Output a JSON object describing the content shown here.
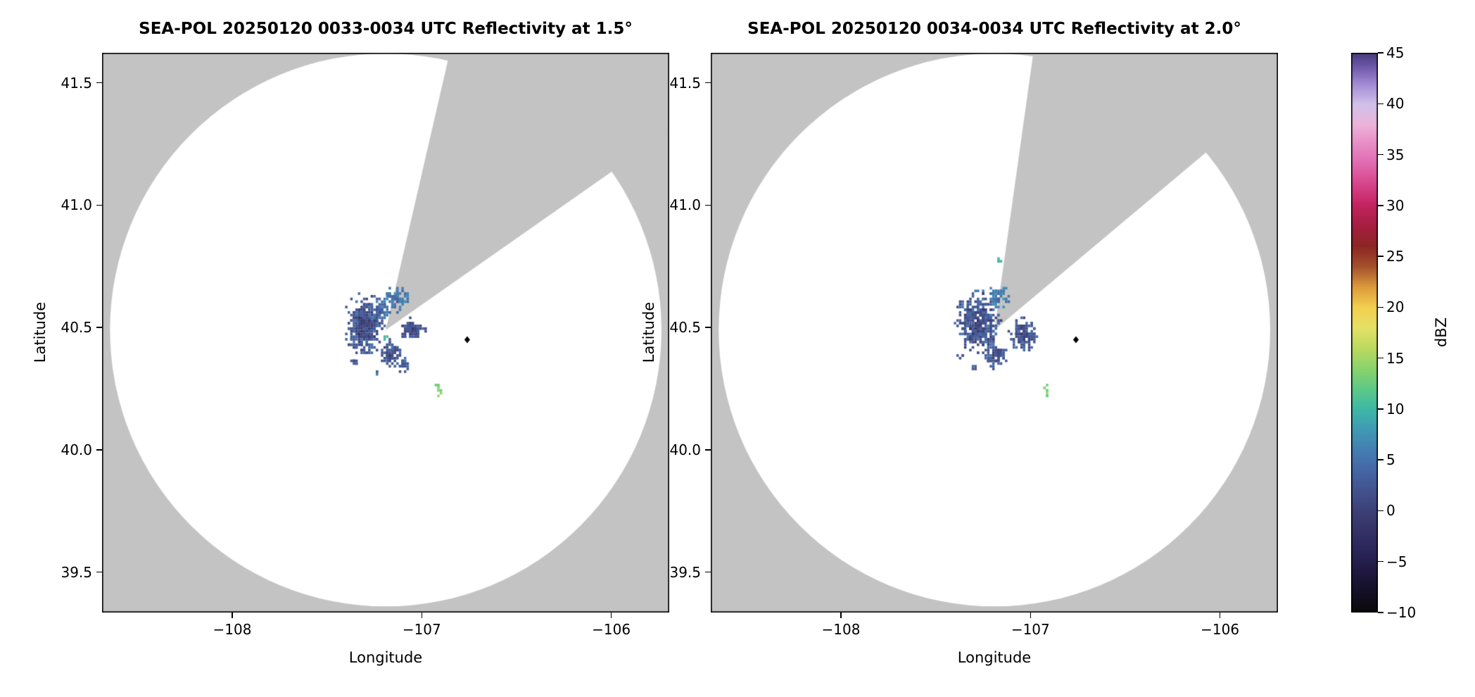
{
  "figure": {
    "background": "#ffffff",
    "outside_scan_color": "#c3c3c3",
    "scan_area_color": "#ffffff",
    "frame_color": "#000000",
    "text_color": "#000000"
  },
  "chart_data": [
    {
      "type": "heatmap",
      "title": "SEA-POL 20250120 0033-0034 UTC Reflectivity at 1.5°",
      "xlabel": "Longitude",
      "ylabel": "Latitude",
      "units": "dBZ",
      "xlim": [
        -108.687,
        -105.694
      ],
      "ylim": [
        39.335,
        41.623
      ],
      "grid": false,
      "xticks": [
        {
          "v": -108,
          "label": "−108"
        },
        {
          "v": -107,
          "label": "−107"
        },
        {
          "v": -106,
          "label": "−106"
        }
      ],
      "yticks": [
        {
          "v": 39.5,
          "label": "39.5"
        },
        {
          "v": 40.0,
          "label": "40.0"
        },
        {
          "v": 40.5,
          "label": "40.5"
        },
        {
          "v": 41.0,
          "label": "41.0"
        },
        {
          "v": 41.5,
          "label": "41.5"
        }
      ],
      "radar": {
        "lon": -107.19,
        "lat": 40.49,
        "range_deg_lon": 1.455,
        "range_deg_lat": 1.13
      },
      "missing_sector_azimuth_deg": [
        13,
        55
      ],
      "station_marker": {
        "lon": -106.76,
        "lat": 40.45,
        "shape": "diamond",
        "color": "#000000"
      },
      "echo_clusters": [
        {
          "lon": -107.3,
          "lat": 40.505,
          "rx": 0.085,
          "ry": 0.095,
          "gates": 320,
          "dbz": [
            -3,
            6
          ],
          "seed": 101
        },
        {
          "lon": -107.21,
          "lat": 40.575,
          "rx": 0.035,
          "ry": 0.035,
          "gates": 40,
          "dbz": [
            0,
            7
          ],
          "seed": 102
        },
        {
          "lon": -107.13,
          "lat": 40.615,
          "rx": 0.055,
          "ry": 0.04,
          "gates": 70,
          "dbz": [
            2,
            8
          ],
          "seed": 103
        },
        {
          "lon": -107.05,
          "lat": 40.49,
          "rx": 0.055,
          "ry": 0.035,
          "gates": 80,
          "dbz": [
            -2,
            4
          ],
          "seed": 104
        },
        {
          "lon": -107.16,
          "lat": 40.39,
          "rx": 0.05,
          "ry": 0.045,
          "gates": 75,
          "dbz": [
            -2,
            5
          ],
          "seed": 105
        },
        {
          "lon": -107.09,
          "lat": 40.345,
          "rx": 0.03,
          "ry": 0.028,
          "gates": 20,
          "dbz": [
            0,
            6
          ],
          "seed": 106
        },
        {
          "lon": -107.36,
          "lat": 40.36,
          "rx": 0.018,
          "ry": 0.018,
          "gates": 8,
          "dbz": [
            0,
            4
          ],
          "seed": 107
        },
        {
          "lon": -107.19,
          "lat": 40.455,
          "rx": 0.012,
          "ry": 0.01,
          "gates": 3,
          "dbz": [
            9,
            11
          ],
          "seed": 108
        },
        {
          "lon": -106.91,
          "lat": 40.25,
          "rx": 0.014,
          "ry": 0.026,
          "gates": 8,
          "dbz": [
            11,
            15
          ],
          "seed": 109
        },
        {
          "lon": -107.24,
          "lat": 40.315,
          "rx": 0.012,
          "ry": 0.01,
          "gates": 3,
          "dbz": [
            2,
            6
          ],
          "seed": 110
        }
      ]
    },
    {
      "type": "heatmap",
      "title": "SEA-POL 20250120 0034-0034 UTC Reflectivity at 2.0°",
      "xlabel": "Longitude",
      "ylabel": "Latitude",
      "units": "dBZ",
      "xlim": [
        -108.687,
        -105.694
      ],
      "ylim": [
        39.335,
        41.623
      ],
      "grid": false,
      "xticks": [
        {
          "v": -108,
          "label": "−108"
        },
        {
          "v": -107,
          "label": "−107"
        },
        {
          "v": -106,
          "label": "−106"
        }
      ],
      "yticks": [
        {
          "v": 39.5,
          "label": "39.5"
        },
        {
          "v": 40.0,
          "label": "40.0"
        },
        {
          "v": 40.5,
          "label": "40.5"
        },
        {
          "v": 41.0,
          "label": "41.0"
        },
        {
          "v": 41.5,
          "label": "41.5"
        }
      ],
      "radar": {
        "lon": -107.19,
        "lat": 40.49,
        "range_deg_lon": 1.455,
        "range_deg_lat": 1.13
      },
      "missing_sector_azimuth_deg": [
        8,
        50
      ],
      "station_marker": {
        "lon": -106.76,
        "lat": 40.45,
        "shape": "diamond",
        "color": "#000000"
      },
      "echo_clusters": [
        {
          "lon": -107.275,
          "lat": 40.515,
          "rx": 0.095,
          "ry": 0.1,
          "gates": 400,
          "dbz": [
            -3,
            6
          ],
          "seed": 201
        },
        {
          "lon": -107.17,
          "lat": 40.625,
          "rx": 0.045,
          "ry": 0.035,
          "gates": 55,
          "dbz": [
            2,
            8
          ],
          "seed": 202
        },
        {
          "lon": -107.04,
          "lat": 40.47,
          "rx": 0.06,
          "ry": 0.05,
          "gates": 120,
          "dbz": [
            -2,
            5
          ],
          "seed": 203
        },
        {
          "lon": -107.18,
          "lat": 40.385,
          "rx": 0.05,
          "ry": 0.04,
          "gates": 70,
          "dbz": [
            -2,
            5
          ],
          "seed": 204
        },
        {
          "lon": -107.16,
          "lat": 40.765,
          "rx": 0.015,
          "ry": 0.012,
          "gates": 4,
          "dbz": [
            8,
            11
          ],
          "seed": 205
        },
        {
          "lon": -106.91,
          "lat": 40.245,
          "rx": 0.012,
          "ry": 0.022,
          "gates": 8,
          "dbz": [
            11,
            15
          ],
          "seed": 206
        },
        {
          "lon": -107.37,
          "lat": 40.38,
          "rx": 0.012,
          "ry": 0.012,
          "gates": 4,
          "dbz": [
            0,
            4
          ],
          "seed": 207
        },
        {
          "lon": -107.3,
          "lat": 40.33,
          "rx": 0.014,
          "ry": 0.012,
          "gates": 4,
          "dbz": [
            0,
            5
          ],
          "seed": 208
        }
      ]
    }
  ],
  "colorbar": {
    "label": "dBZ",
    "min": -10,
    "max": 45,
    "ticks": [
      {
        "v": -10,
        "label": "−10"
      },
      {
        "v": -5,
        "label": "−5"
      },
      {
        "v": 0,
        "label": "0"
      },
      {
        "v": 5,
        "label": "5"
      },
      {
        "v": 10,
        "label": "10"
      },
      {
        "v": 15,
        "label": "15"
      },
      {
        "v": 20,
        "label": "20"
      },
      {
        "v": 25,
        "label": "25"
      },
      {
        "v": 30,
        "label": "30"
      },
      {
        "v": 35,
        "label": "35"
      },
      {
        "v": 40,
        "label": "40"
      },
      {
        "v": 45,
        "label": "45"
      }
    ],
    "stops": [
      [
        -10,
        "#0a0a0a"
      ],
      [
        -8,
        "#140f26"
      ],
      [
        -6,
        "#1f1840"
      ],
      [
        -4,
        "#2b255a"
      ],
      [
        -2,
        "#343266"
      ],
      [
        0,
        "#3d4078"
      ],
      [
        2,
        "#42538f"
      ],
      [
        4,
        "#4567a5"
      ],
      [
        6,
        "#447fb2"
      ],
      [
        8,
        "#3f9bb4"
      ],
      [
        10,
        "#3fb8a5"
      ],
      [
        12,
        "#5ec987"
      ],
      [
        14,
        "#8bd36b"
      ],
      [
        16,
        "#bcda5e"
      ],
      [
        18,
        "#e5e066"
      ],
      [
        20,
        "#f3cf4f"
      ],
      [
        22,
        "#dd9a3b"
      ],
      [
        24,
        "#a4512d"
      ],
      [
        26,
        "#8c2623"
      ],
      [
        28,
        "#a51e40"
      ],
      [
        30,
        "#c32360"
      ],
      [
        32,
        "#d6438a"
      ],
      [
        34,
        "#e068ad"
      ],
      [
        36,
        "#e78cc5"
      ],
      [
        38,
        "#ecb3da"
      ],
      [
        40,
        "#d0c1e9"
      ],
      [
        42,
        "#a189d4"
      ],
      [
        44,
        "#64509f"
      ],
      [
        45,
        "#4a3a7d"
      ]
    ]
  }
}
